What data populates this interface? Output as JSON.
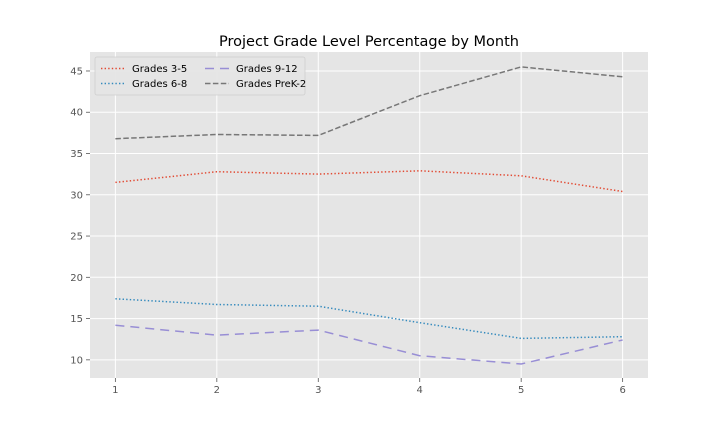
{
  "chart_data": {
    "type": "line",
    "title": "Project Grade Level Percentage by Month",
    "xlabel": "",
    "ylabel": "",
    "x": [
      1,
      2,
      3,
      4,
      5,
      6
    ],
    "xlim": [
      0.75,
      6.25
    ],
    "ylim": [
      7.8,
      47.3
    ],
    "xticks": [
      1,
      2,
      3,
      4,
      5,
      6
    ],
    "yticks": [
      10,
      15,
      20,
      25,
      30,
      35,
      40,
      45
    ],
    "grid": true,
    "legend_position": "top-left",
    "legend_columns": 2,
    "background": "#e5e5e5",
    "series": [
      {
        "name": "Grades 3-5",
        "values": [
          31.5,
          32.8,
          32.5,
          32.9,
          32.3,
          30.4
        ],
        "color": "#e24a33",
        "dash": "dotted"
      },
      {
        "name": "Grades 6-8",
        "values": [
          17.4,
          16.7,
          16.5,
          14.5,
          12.6,
          12.8
        ],
        "color": "#348abd",
        "dash": "dotted"
      },
      {
        "name": "Grades 9-12",
        "values": [
          14.2,
          13.0,
          13.6,
          10.5,
          9.5,
          12.4
        ],
        "color": "#988ed5",
        "dash": "long-dash"
      },
      {
        "name": "Grades PreK-2",
        "values": [
          36.8,
          37.3,
          37.2,
          42.0,
          45.5,
          44.3
        ],
        "color": "#777777",
        "dash": "dashed"
      }
    ]
  }
}
